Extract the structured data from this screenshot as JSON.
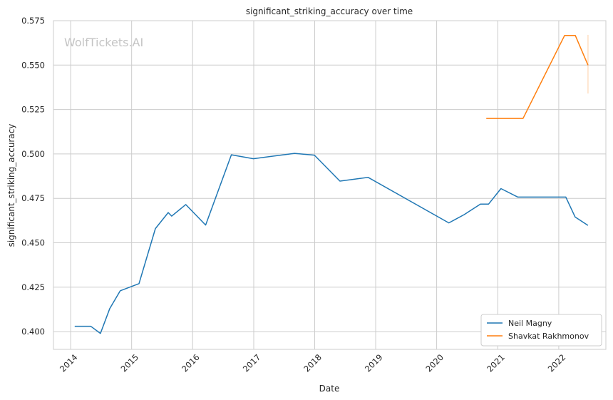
{
  "watermark": "WolfTickets.AI",
  "colors": {
    "grid": "#cccccc",
    "axes": "#cccccc",
    "background": "#ffffff"
  },
  "chart_data": {
    "type": "line",
    "title": "significant_striking_accuracy over time",
    "xlabel": "Date",
    "ylabel": "significant_striking_accuracy",
    "xlim": [
      "2013-09-20",
      "2022-10-10"
    ],
    "ylim": [
      0.39,
      0.575
    ],
    "grid": true,
    "legend_position": "bottom-right",
    "x_ticks": [
      "2014",
      "2015",
      "2016",
      "2017",
      "2018",
      "2019",
      "2020",
      "2021",
      "2022"
    ],
    "y_ticks": [
      "0.400",
      "0.425",
      "0.450",
      "0.475",
      "0.500",
      "0.525",
      "0.550",
      "0.575"
    ],
    "series": [
      {
        "name": "Neil Magny",
        "color": "#1f77b4",
        "points": [
          [
            "2014-01-25",
            0.403
          ],
          [
            "2014-05-01",
            0.403
          ],
          [
            "2014-06-28",
            0.399
          ],
          [
            "2014-08-23",
            0.413
          ],
          [
            "2014-10-25",
            0.423
          ],
          [
            "2015-02-14",
            0.427
          ],
          [
            "2015-05-23",
            0.458
          ],
          [
            "2015-08-08",
            0.467
          ],
          [
            "2015-08-29",
            0.465
          ],
          [
            "2015-11-21",
            0.4715
          ],
          [
            "2016-03-19",
            0.46
          ],
          [
            "2016-08-20",
            0.4995
          ],
          [
            "2016-12-30",
            0.4973
          ],
          [
            "2017-09-02",
            0.5003
          ],
          [
            "2017-12-30",
            0.4993
          ],
          [
            "2018-06-01",
            0.4847
          ],
          [
            "2018-11-17",
            0.4868
          ],
          [
            "2020-03-14",
            0.4612
          ],
          [
            "2020-06-13",
            0.4658
          ],
          [
            "2020-09-19",
            0.4718
          ],
          [
            "2020-11-07",
            0.4718
          ],
          [
            "2021-01-20",
            0.4805
          ],
          [
            "2021-05-01",
            0.4757
          ],
          [
            "2022-02-12",
            0.4757
          ],
          [
            "2022-04-09",
            0.4645
          ],
          [
            "2022-06-25",
            0.4598
          ]
        ]
      },
      {
        "name": "Shavkat Rakhmonov",
        "color": "#ff7f0e",
        "points": [
          [
            "2020-10-24",
            0.52
          ],
          [
            "2021-06-01",
            0.52
          ],
          [
            "2022-02-05",
            0.5667
          ],
          [
            "2022-04-10",
            0.5667
          ],
          [
            "2022-06-25",
            0.55
          ]
        ],
        "band_at": "2022-06-25",
        "band": [
          0.534,
          0.567
        ]
      }
    ]
  }
}
